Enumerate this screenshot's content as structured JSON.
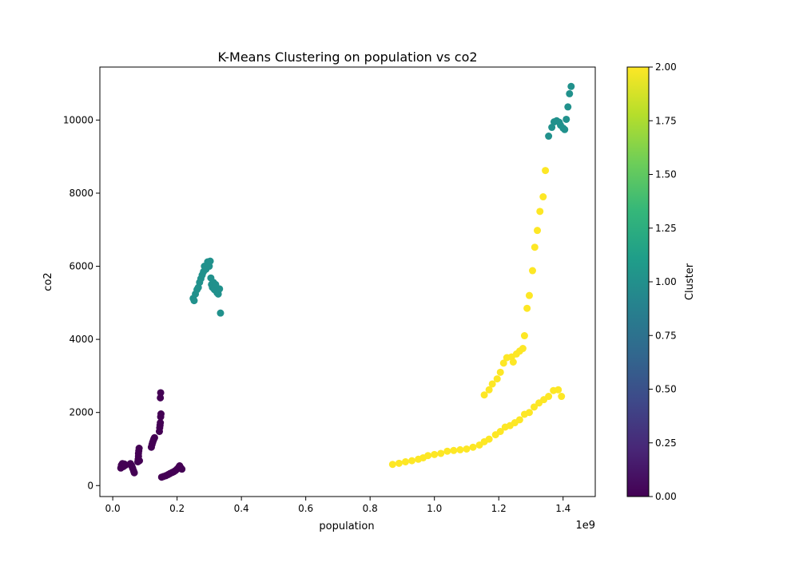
{
  "chart_data": {
    "type": "scatter",
    "title": "K-Means Clustering on population vs co2",
    "xlabel": "population",
    "ylabel": "co2",
    "x_offset_label": "1e9",
    "x_scale_factor": 1000000000,
    "xlim": [
      -0.04,
      1.5
    ],
    "ylim": [
      -300,
      11450
    ],
    "xticks": [
      0.0,
      0.2,
      0.4,
      0.6,
      0.8,
      1.0,
      1.2,
      1.4
    ],
    "xtick_labels": [
      "0.0",
      "0.2",
      "0.4",
      "0.6",
      "0.8",
      "1.0",
      "1.2",
      "1.4"
    ],
    "yticks": [
      0,
      2000,
      4000,
      6000,
      8000,
      10000
    ],
    "ytick_labels": [
      "0",
      "2000",
      "4000",
      "6000",
      "8000",
      "10000"
    ],
    "grid": false,
    "colorbar": {
      "label": "Cluster",
      "range": [
        0,
        2
      ],
      "ticks": [
        0,
        0.25,
        0.5,
        0.75,
        1.0,
        1.25,
        1.5,
        1.75,
        2.0
      ],
      "tick_labels": [
        "0.00",
        "0.25",
        "0.50",
        "0.75",
        "1.00",
        "1.25",
        "1.50",
        "1.75",
        "2.00"
      ],
      "colormap": "viridis",
      "colormap_stops": [
        "#440154",
        "#482777",
        "#3e4989",
        "#31688e",
        "#26828e",
        "#1f9e89",
        "#35b779",
        "#6ece58",
        "#b5de2b",
        "#fde725"
      ]
    },
    "cluster_colors": {
      "0": "#440154",
      "1": "#21918c",
      "2": "#fde725"
    },
    "series": [
      {
        "cluster": 0,
        "points": [
          [
            0.025,
            480
          ],
          [
            0.027,
            560
          ],
          [
            0.03,
            600
          ],
          [
            0.033,
            520
          ],
          [
            0.036,
            590
          ],
          [
            0.04,
            560
          ],
          [
            0.055,
            600
          ],
          [
            0.058,
            560
          ],
          [
            0.06,
            520
          ],
          [
            0.062,
            470
          ],
          [
            0.065,
            400
          ],
          [
            0.067,
            350
          ],
          [
            0.078,
            650
          ],
          [
            0.079,
            720
          ],
          [
            0.08,
            800
          ],
          [
            0.08,
            880
          ],
          [
            0.081,
            950
          ],
          [
            0.082,
            1020
          ],
          [
            0.083,
            680
          ],
          [
            0.12,
            1050
          ],
          [
            0.122,
            1120
          ],
          [
            0.124,
            1180
          ],
          [
            0.126,
            1230
          ],
          [
            0.128,
            1280
          ],
          [
            0.13,
            1310
          ],
          [
            0.145,
            1480
          ],
          [
            0.146,
            1580
          ],
          [
            0.147,
            1650
          ],
          [
            0.148,
            1720
          ],
          [
            0.149,
            1880
          ],
          [
            0.15,
            1960
          ],
          [
            0.148,
            2400
          ],
          [
            0.149,
            2540
          ],
          [
            0.152,
            230
          ],
          [
            0.158,
            250
          ],
          [
            0.165,
            270
          ],
          [
            0.172,
            300
          ],
          [
            0.178,
            330
          ],
          [
            0.185,
            360
          ],
          [
            0.19,
            380
          ],
          [
            0.195,
            410
          ],
          [
            0.2,
            450
          ],
          [
            0.205,
            500
          ],
          [
            0.208,
            540
          ],
          [
            0.212,
            480
          ],
          [
            0.215,
            450
          ]
        ]
      },
      {
        "cluster": 1,
        "points": [
          [
            0.25,
            5120
          ],
          [
            0.253,
            5060
          ],
          [
            0.257,
            5240
          ],
          [
            0.262,
            5360
          ],
          [
            0.266,
            5420
          ],
          [
            0.27,
            5560
          ],
          [
            0.274,
            5660
          ],
          [
            0.278,
            5760
          ],
          [
            0.282,
            5850
          ],
          [
            0.285,
            6000
          ],
          [
            0.29,
            5920
          ],
          [
            0.295,
            6120
          ],
          [
            0.3,
            6000
          ],
          [
            0.303,
            6140
          ],
          [
            0.305,
            5680
          ],
          [
            0.307,
            5500
          ],
          [
            0.31,
            5420
          ],
          [
            0.313,
            5560
          ],
          [
            0.316,
            5360
          ],
          [
            0.32,
            5500
          ],
          [
            0.324,
            5280
          ],
          [
            0.328,
            5240
          ],
          [
            0.332,
            5380
          ],
          [
            0.335,
            4720
          ],
          [
            1.355,
            9560
          ],
          [
            1.365,
            9800
          ],
          [
            1.372,
            9950
          ],
          [
            1.38,
            9980
          ],
          [
            1.388,
            9940
          ],
          [
            1.392,
            9860
          ],
          [
            1.4,
            9780
          ],
          [
            1.405,
            9740
          ],
          [
            1.41,
            10020
          ],
          [
            1.415,
            10360
          ],
          [
            1.42,
            10720
          ],
          [
            1.425,
            10920
          ]
        ]
      },
      {
        "cluster": 2,
        "points": [
          [
            0.87,
            580
          ],
          [
            0.89,
            610
          ],
          [
            0.91,
            650
          ],
          [
            0.93,
            680
          ],
          [
            0.95,
            720
          ],
          [
            0.965,
            760
          ],
          [
            0.98,
            820
          ],
          [
            1.0,
            850
          ],
          [
            1.02,
            880
          ],
          [
            1.04,
            940
          ],
          [
            1.06,
            960
          ],
          [
            1.08,
            980
          ],
          [
            1.1,
            1000
          ],
          [
            1.12,
            1050
          ],
          [
            1.14,
            1110
          ],
          [
            1.155,
            1200
          ],
          [
            1.17,
            1270
          ],
          [
            1.19,
            1390
          ],
          [
            1.205,
            1480
          ],
          [
            1.22,
            1600
          ],
          [
            1.235,
            1640
          ],
          [
            1.25,
            1720
          ],
          [
            1.265,
            1800
          ],
          [
            1.28,
            1950
          ],
          [
            1.295,
            2000
          ],
          [
            1.31,
            2150
          ],
          [
            1.325,
            2260
          ],
          [
            1.34,
            2350
          ],
          [
            1.355,
            2440
          ],
          [
            1.37,
            2600
          ],
          [
            1.385,
            2620
          ],
          [
            1.395,
            2440
          ],
          [
            1.155,
            2480
          ],
          [
            1.17,
            2620
          ],
          [
            1.18,
            2780
          ],
          [
            1.195,
            2920
          ],
          [
            1.205,
            3100
          ],
          [
            1.215,
            3350
          ],
          [
            1.225,
            3500
          ],
          [
            1.24,
            3520
          ],
          [
            1.245,
            3380
          ],
          [
            1.255,
            3600
          ],
          [
            1.265,
            3680
          ],
          [
            1.275,
            3750
          ],
          [
            1.28,
            4100
          ],
          [
            1.288,
            4850
          ],
          [
            1.295,
            5200
          ],
          [
            1.305,
            5880
          ],
          [
            1.312,
            6520
          ],
          [
            1.32,
            6980
          ],
          [
            1.328,
            7500
          ],
          [
            1.338,
            7900
          ],
          [
            1.345,
            8620
          ]
        ]
      }
    ]
  }
}
